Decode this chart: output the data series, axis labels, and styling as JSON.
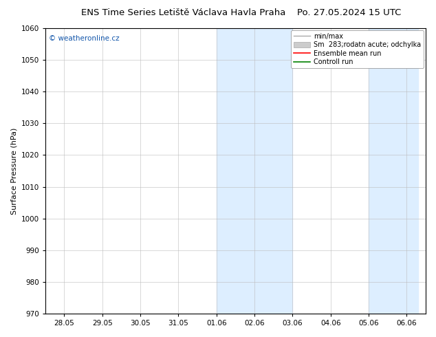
{
  "title_left": "ENS Time Series Letiště Václava Havla Praha",
  "title_right": "Po. 27.05.2024 15 UTC",
  "ylabel": "Surface Pressure (hPa)",
  "ylim": [
    970,
    1060
  ],
  "yticks": [
    970,
    980,
    990,
    1000,
    1010,
    1020,
    1030,
    1040,
    1050,
    1060
  ],
  "xtick_labels": [
    "28.05",
    "29.05",
    "30.05",
    "31.05",
    "01.06",
    "02.06",
    "03.06",
    "04.06",
    "05.06",
    "06.06"
  ],
  "shade1_x0": 4.0,
  "shade1_x1": 6.0,
  "shade2_x0": 8.0,
  "shade2_x1": 9.3,
  "shade_color": "#ddeeff",
  "watermark": "© weatheronline.cz",
  "watermark_color": "#1155aa",
  "background_plot": "#ffffff",
  "title_fontsize": 9.5,
  "tick_fontsize": 7.5,
  "ylabel_fontsize": 8,
  "legend_fontsize": 7,
  "xlim_left": -0.5,
  "xlim_right": 9.5
}
